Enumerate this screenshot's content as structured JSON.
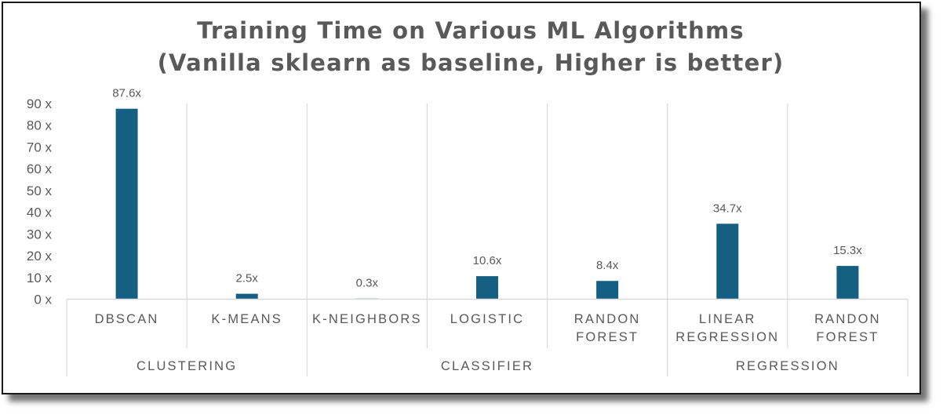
{
  "colors": {
    "bar": "#156082",
    "grid": "#d9d9d9",
    "text": "#595959"
  },
  "chart_data": {
    "type": "bar",
    "title_lines": [
      "Training Time on Various ML Algorithms",
      "(Vanilla sklearn as baseline, Higher is better)"
    ],
    "ylim": [
      0,
      90
    ],
    "yticks": [
      "0 x",
      "10 x",
      "20 x",
      "30 x",
      "40 x",
      "50 x",
      "60 x",
      "70 x",
      "80 x",
      "90 x"
    ],
    "grid": "vertical separators between categories",
    "categories": [
      {
        "label": [
          "DBSCAN"
        ],
        "group": "CLUSTERING",
        "value": 87.6,
        "data_label": "87.6x"
      },
      {
        "label": [
          "K-MEANS"
        ],
        "group": "CLUSTERING",
        "value": 2.5,
        "data_label": "2.5x"
      },
      {
        "label": [
          "K-NEIGHBORS"
        ],
        "group": "CLASSIFIER",
        "value": 0.3,
        "data_label": "0.3x"
      },
      {
        "label": [
          "LOGISTIC"
        ],
        "group": "CLASSIFIER",
        "value": 10.6,
        "data_label": "10.6x"
      },
      {
        "label": [
          "RANDON",
          "FOREST"
        ],
        "group": "CLASSIFIER",
        "value": 8.4,
        "data_label": "8.4x"
      },
      {
        "label": [
          "LINEAR",
          "REGRESSION"
        ],
        "group": "REGRESSION",
        "value": 34.7,
        "data_label": "34.7x"
      },
      {
        "label": [
          "RANDON",
          "FOREST"
        ],
        "group": "REGRESSION",
        "value": 15.3,
        "data_label": "15.3x"
      }
    ],
    "groups": [
      "CLUSTERING",
      "CLASSIFIER",
      "REGRESSION"
    ]
  }
}
